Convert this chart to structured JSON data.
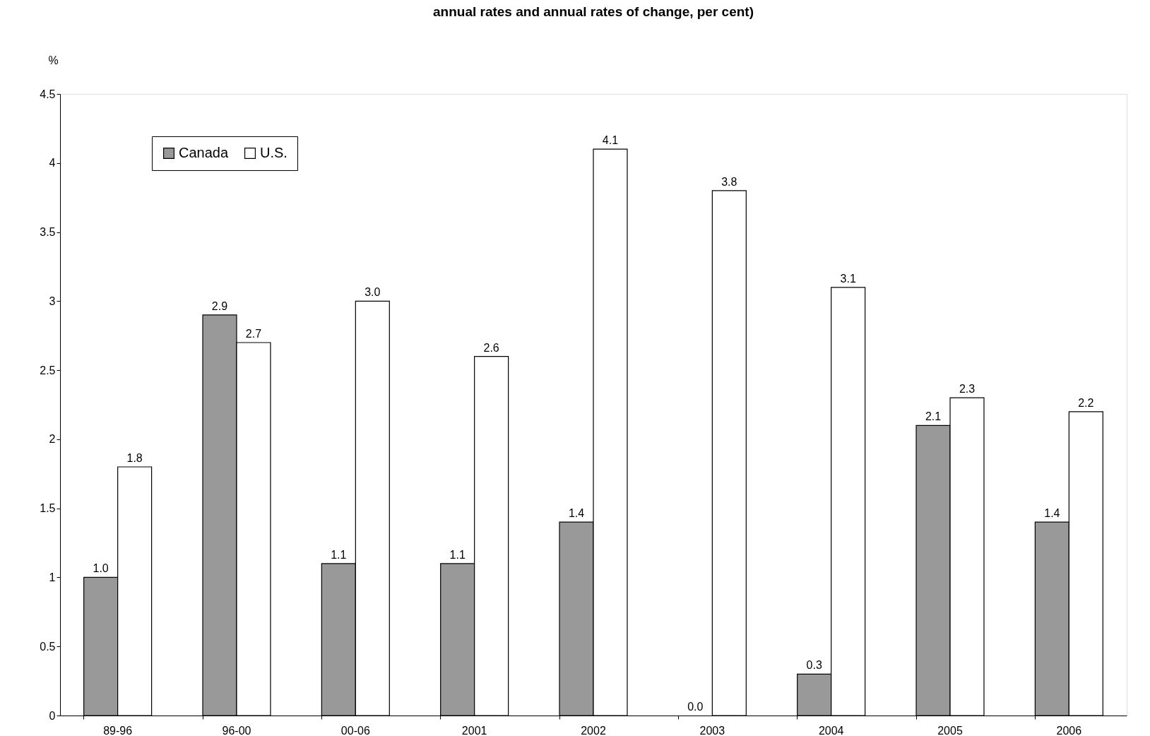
{
  "chart_data": {
    "type": "bar",
    "title": "annual rates and annual rates of change, per cent)",
    "ylabel": "%",
    "categories": [
      "89-96",
      "96-00",
      "00-06",
      "2001",
      "2002",
      "2003",
      "2004",
      "2005",
      "2006"
    ],
    "series": [
      {
        "name": "Canada",
        "color": "#999999",
        "values": [
          1.0,
          2.9,
          1.1,
          1.1,
          1.4,
          0.0,
          0.3,
          2.1,
          1.4
        ]
      },
      {
        "name": "U.S.",
        "color": "#ffffff",
        "values": [
          1.8,
          2.7,
          3.0,
          2.6,
          4.1,
          3.8,
          3.1,
          2.3,
          2.2
        ]
      }
    ],
    "ylim": [
      0,
      4.5
    ],
    "yticks": [
      0,
      0.5,
      1,
      1.5,
      2,
      2.5,
      3,
      3.5,
      4,
      4.5
    ],
    "value_labels": [
      [
        "1.0",
        "2.9",
        "1.1",
        "1.1",
        "1.4",
        "0.0",
        "0.3",
        "2.1",
        "1.4"
      ],
      [
        "1.8",
        "2.7",
        "3.0",
        "2.6",
        "4.1",
        "3.8",
        "3.1",
        "2.3",
        "2.2"
      ]
    ],
    "grid": false,
    "legend": "top left"
  }
}
